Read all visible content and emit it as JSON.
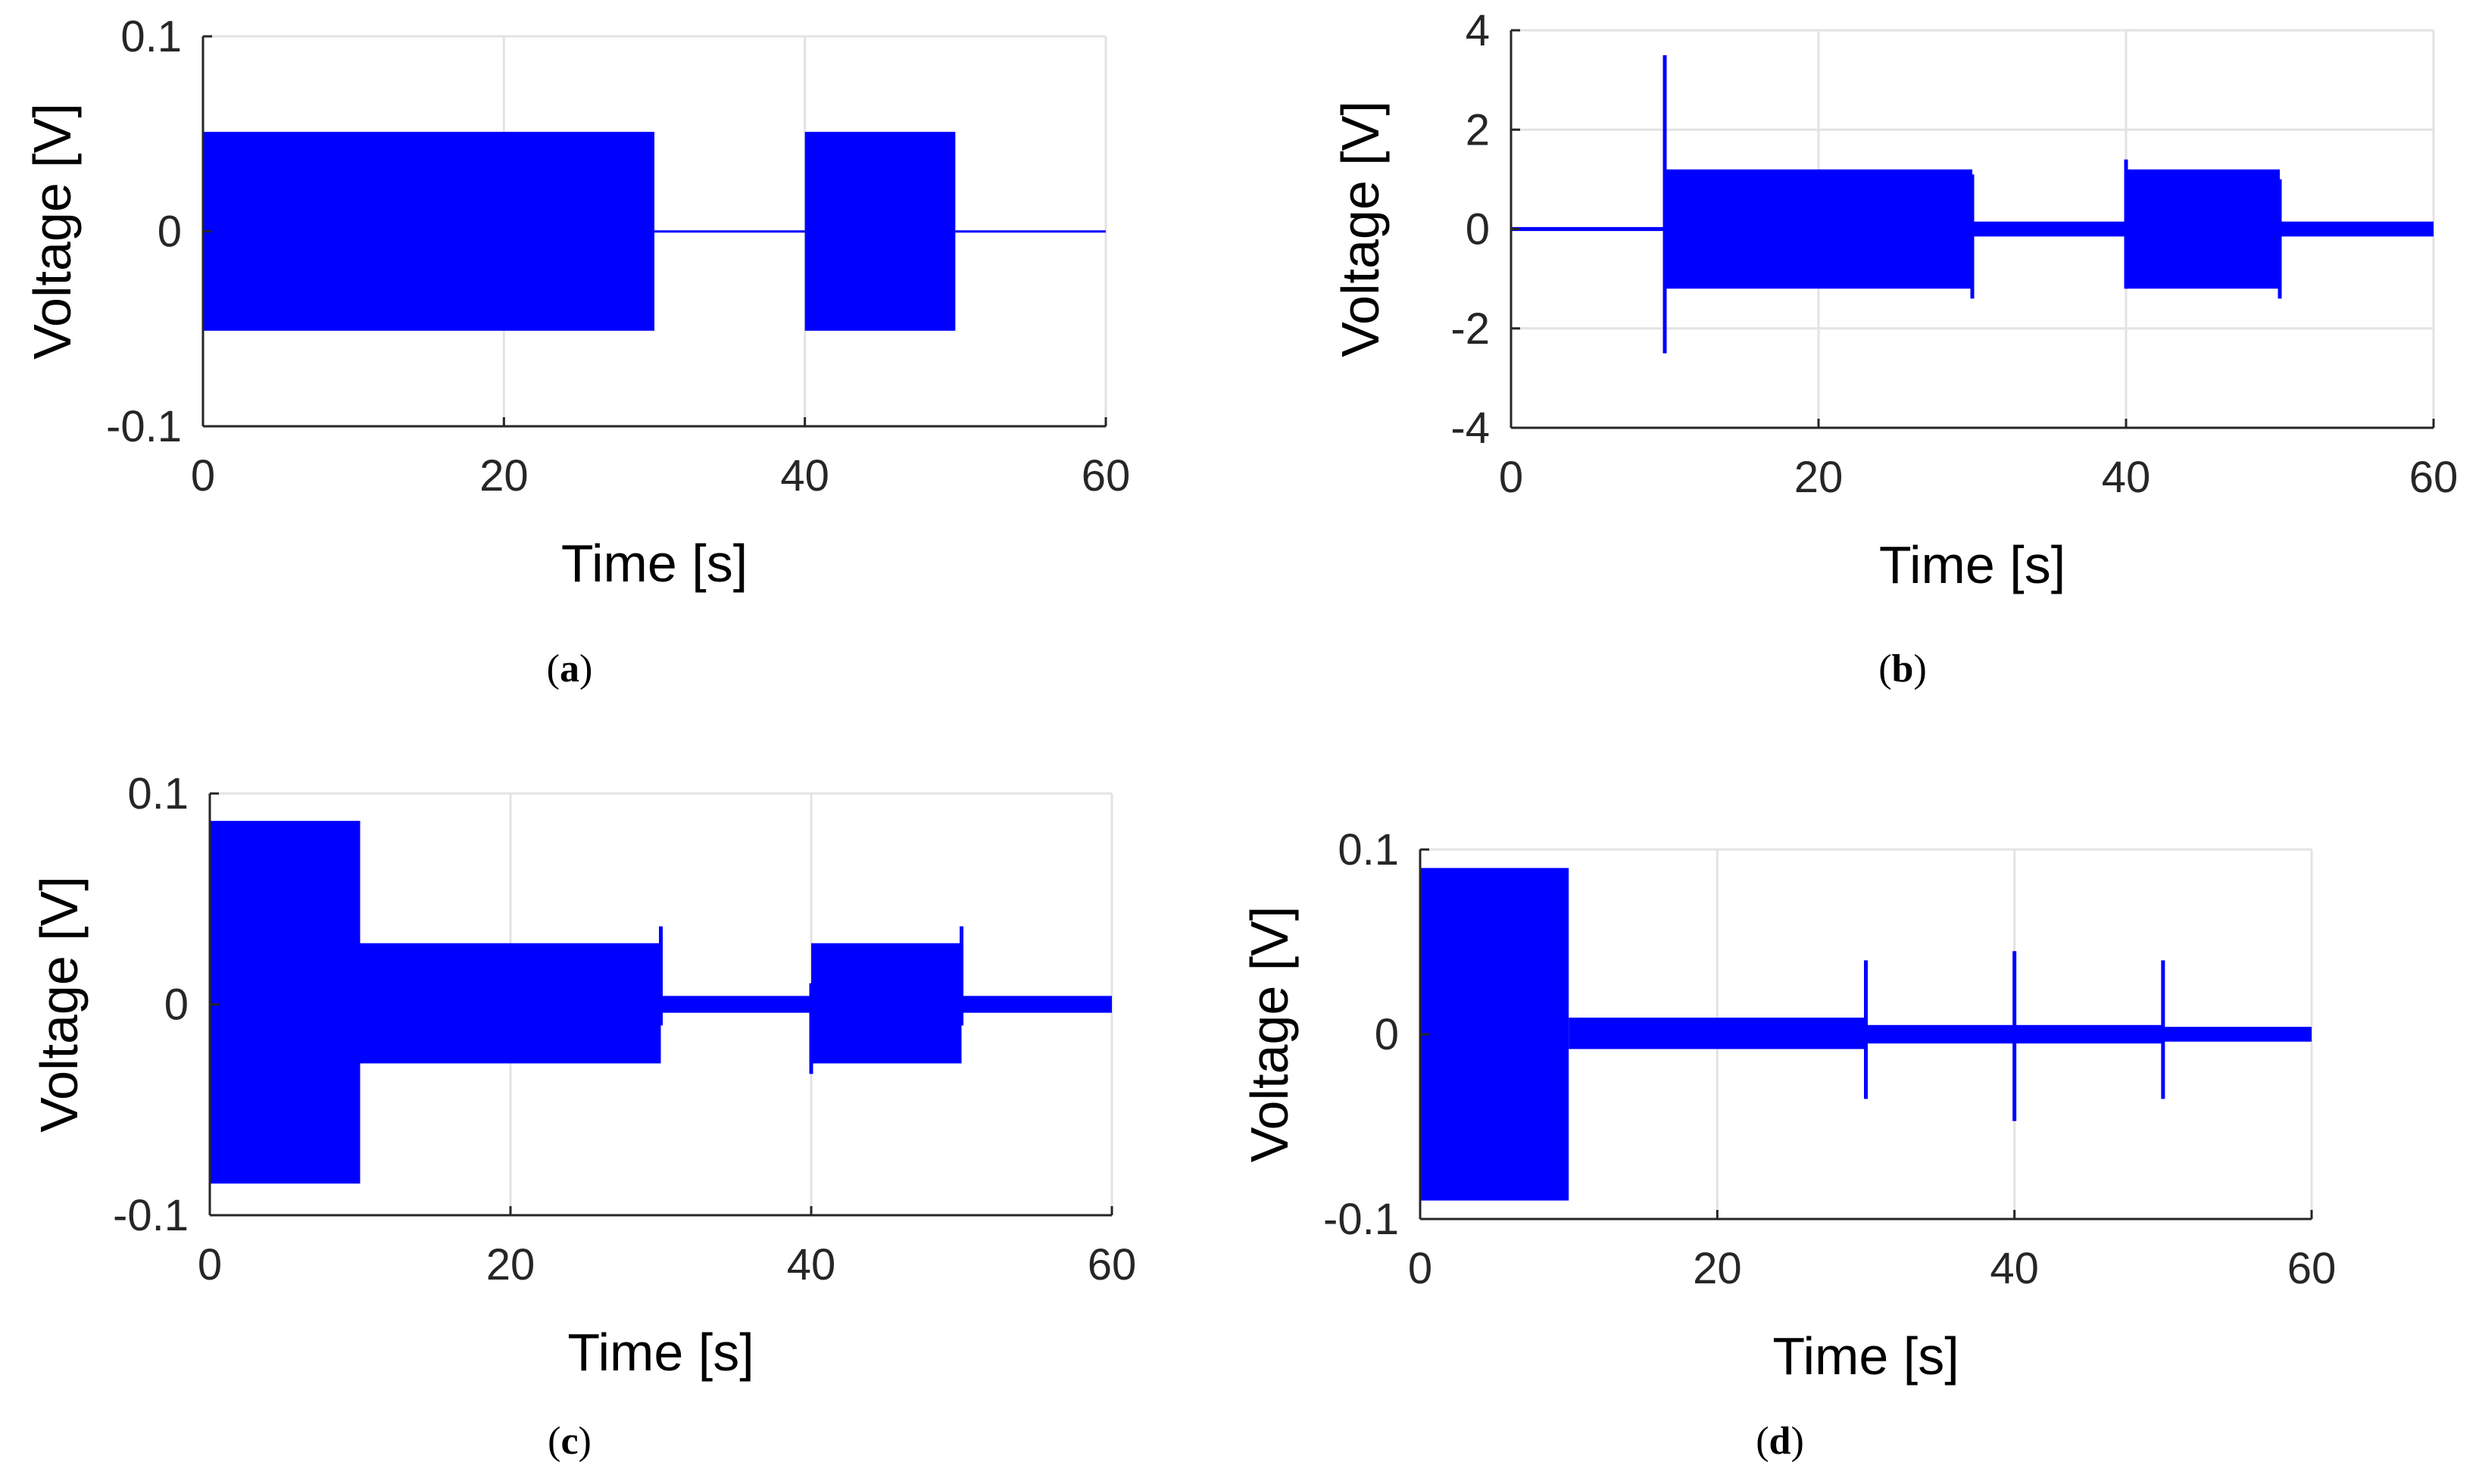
{
  "colors": {
    "signal": "#0000ff",
    "grid": "#e3e3e3",
    "axis": "#262626"
  },
  "chart_data": [
    {
      "id": "a",
      "caption_letter": "a",
      "type": "line",
      "xlabel": "Time [s]",
      "ylabel": "Voltage [V]",
      "xlim": [
        0,
        60
      ],
      "ylim": [
        -0.1,
        0.1
      ],
      "xticks": [
        0,
        20,
        40,
        60
      ],
      "xtick_labels": [
        "0",
        "20",
        "40",
        "60"
      ],
      "yticks": [
        -0.1,
        0,
        0.1
      ],
      "ytick_labels": [
        "-0.1",
        "0",
        "0.1"
      ],
      "grid": true,
      "segments": [
        {
          "t": [
            0,
            30
          ],
          "high": 0.051,
          "low": -0.051
        },
        {
          "t": [
            30,
            40
          ],
          "high": 0.0005,
          "low": -0.0005
        },
        {
          "t": [
            40,
            50
          ],
          "high": 0.051,
          "low": -0.051
        },
        {
          "t": [
            50,
            60
          ],
          "high": 0.0005,
          "low": -0.0005
        }
      ],
      "spikes": []
    },
    {
      "id": "b",
      "caption_letter": "b",
      "type": "line",
      "xlabel": "Time [s]",
      "ylabel": "Voltage [V]",
      "xlim": [
        0,
        60
      ],
      "ylim": [
        -4,
        4
      ],
      "xticks": [
        0,
        20,
        40,
        60
      ],
      "xtick_labels": [
        "0",
        "20",
        "40",
        "60"
      ],
      "yticks": [
        -4,
        -2,
        0,
        2,
        4
      ],
      "ytick_labels": [
        "-4",
        "-2",
        "0",
        "2",
        "4"
      ],
      "grid": true,
      "segments": [
        {
          "t": [
            0,
            10
          ],
          "high": 0.04,
          "low": -0.04
        },
        {
          "t": [
            10,
            30
          ],
          "high": 1.2,
          "low": -1.2
        },
        {
          "t": [
            30,
            40
          ],
          "high": 0.15,
          "low": -0.15
        },
        {
          "t": [
            40,
            50
          ],
          "high": 1.2,
          "low": -1.2
        },
        {
          "t": [
            50,
            60
          ],
          "high": 0.15,
          "low": -0.15
        }
      ],
      "spikes": [
        {
          "t": 10,
          "high": 3.5,
          "low": -2.5
        },
        {
          "t": 30,
          "high": 1.1,
          "low": -1.4
        },
        {
          "t": 40,
          "high": 1.4,
          "low": -1.2
        },
        {
          "t": 50,
          "high": 1.0,
          "low": -1.4
        }
      ]
    },
    {
      "id": "c",
      "caption_letter": "c",
      "type": "line",
      "xlabel": "Time [s]",
      "ylabel": "Voltage [V]",
      "xlim": [
        0,
        60
      ],
      "ylim": [
        -0.1,
        0.1
      ],
      "xticks": [
        0,
        20,
        40,
        60
      ],
      "xtick_labels": [
        "0",
        "20",
        "40",
        "60"
      ],
      "yticks": [
        -0.1,
        0,
        0.1
      ],
      "ytick_labels": [
        "-0.1",
        "0",
        "0.1"
      ],
      "grid": true,
      "segments": [
        {
          "t": [
            0,
            10
          ],
          "high": 0.087,
          "low": -0.085
        },
        {
          "t": [
            10,
            30
          ],
          "high": 0.029,
          "low": -0.028
        },
        {
          "t": [
            30,
            40
          ],
          "high": 0.004,
          "low": -0.004
        },
        {
          "t": [
            40,
            50
          ],
          "high": 0.029,
          "low": -0.028
        },
        {
          "t": [
            50,
            60
          ],
          "high": 0.004,
          "low": -0.004
        }
      ],
      "spikes": [
        {
          "t": 30,
          "high": 0.037,
          "low": -0.01
        },
        {
          "t": 40,
          "high": 0.01,
          "low": -0.033
        },
        {
          "t": 50,
          "high": 0.037,
          "low": -0.01
        }
      ]
    },
    {
      "id": "d",
      "caption_letter": "d",
      "type": "line",
      "xlabel": "Time [s]",
      "ylabel": "Voltage [V]",
      "xlim": [
        0,
        60
      ],
      "ylim": [
        -0.1,
        0.1
      ],
      "xticks": [
        0,
        20,
        40,
        60
      ],
      "xtick_labels": [
        "0",
        "20",
        "40",
        "60"
      ],
      "yticks": [
        -0.1,
        0,
        0.1
      ],
      "ytick_labels": [
        "-0.1",
        "0",
        "0.1"
      ],
      "grid": true,
      "segments": [
        {
          "t": [
            0,
            10
          ],
          "high": 0.09,
          "low": -0.09
        },
        {
          "t": [
            10,
            30
          ],
          "high": 0.009,
          "low": -0.008
        },
        {
          "t": [
            30,
            40
          ],
          "high": 0.005,
          "low": -0.005
        },
        {
          "t": [
            40,
            50
          ],
          "high": 0.005,
          "low": -0.005
        },
        {
          "t": [
            50,
            60
          ],
          "high": 0.004,
          "low": -0.004
        }
      ],
      "spikes": [
        {
          "t": 30,
          "high": 0.04,
          "low": -0.035
        },
        {
          "t": 40,
          "high": 0.045,
          "low": -0.047
        },
        {
          "t": 50,
          "high": 0.04,
          "low": -0.035
        }
      ]
    }
  ]
}
